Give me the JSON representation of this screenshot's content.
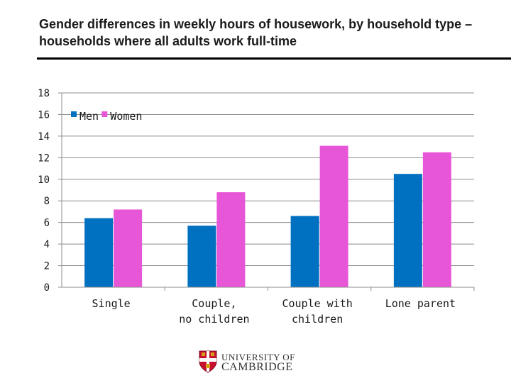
{
  "header": {
    "title": "Gender differences in weekly hours of housework, by household type –households where all adults work full-time"
  },
  "chart_data": {
    "type": "bar",
    "categories": [
      "Single",
      "Couple, no children",
      "Couple with children",
      "Lone parent"
    ],
    "series": [
      {
        "name": "Men",
        "color": "#0070c0",
        "values": [
          6.4,
          5.7,
          6.6,
          10.5
        ]
      },
      {
        "name": "Women",
        "color": "#e856d8",
        "values": [
          7.2,
          8.8,
          13.1,
          12.5
        ]
      }
    ],
    "ylim": [
      0,
      18
    ],
    "yticks": [
      0,
      2,
      4,
      6,
      8,
      10,
      12,
      14,
      16,
      18
    ],
    "grid": true,
    "legend": "top-left"
  },
  "logo": {
    "line1": "UNIVERSITY OF",
    "line2": "CAMBRIDGE"
  }
}
